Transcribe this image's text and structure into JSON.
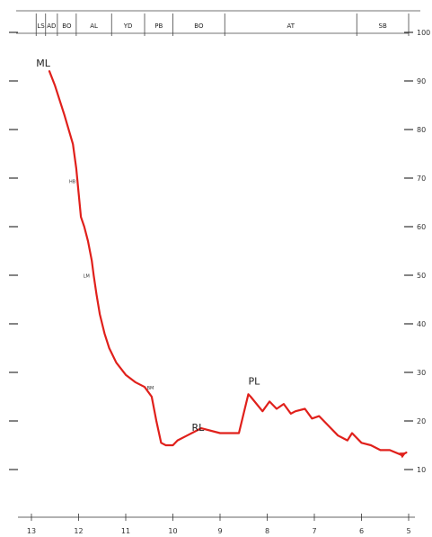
{
  "chart_data": {
    "type": "line",
    "title": "",
    "xlabel": "",
    "ylabel": "",
    "x_reversed": true,
    "xlim": [
      13,
      5
    ],
    "ylim": [
      10,
      100
    ],
    "x_ticks": [
      "13",
      "12",
      "11",
      "10",
      "9",
      "8",
      "7",
      "6",
      "5"
    ],
    "y_ticks": [
      "100",
      "90",
      "80",
      "70",
      "60",
      "50",
      "40",
      "30",
      "20",
      "10"
    ],
    "zones": [
      "LS",
      "AD",
      "BO",
      "AL",
      "YD",
      "PB",
      "BO",
      "AT",
      "SB"
    ],
    "zone_boundaries": [
      12.9,
      12.7,
      12.45,
      12.05,
      11.3,
      10.6,
      10.0,
      8.9,
      6.1,
      5.0
    ],
    "line_color": "#e0201b",
    "series": [
      {
        "x": [
          12.62,
          12.5,
          12.3,
          12.12,
          12.05,
          12.0,
          11.95,
          11.88,
          11.8,
          11.72,
          11.68,
          11.62,
          11.55,
          11.45,
          11.35,
          11.2,
          11.0,
          10.8,
          10.6,
          10.45,
          10.35,
          10.25,
          10.15,
          10.1,
          10.0,
          9.9,
          9.7,
          9.4,
          9.0,
          8.9,
          8.6,
          8.4,
          8.35,
          8.1,
          7.95,
          7.8,
          7.65,
          7.5,
          7.4,
          7.2,
          7.05,
          6.9,
          6.7,
          6.5,
          6.3,
          6.2,
          6.0,
          5.8,
          5.6,
          5.4,
          5.15,
          5.05
        ],
        "y": [
          92,
          89,
          83,
          77,
          72,
          67,
          62,
          60,
          57,
          53,
          50,
          46,
          42,
          38,
          35,
          32,
          29.5,
          28,
          27,
          25,
          20,
          15.5,
          15,
          15,
          15,
          16,
          17,
          18.5,
          17.5,
          17.5,
          17.5,
          25.5,
          25,
          22,
          24,
          22.5,
          23.5,
          21.5,
          22,
          22.5,
          20.5,
          21,
          19,
          17,
          16,
          17.5,
          15.5,
          15,
          14,
          14,
          13,
          13.5
        ]
      }
    ],
    "annotations": [
      {
        "text": "ML",
        "x": 12.9,
        "y": 93
      },
      {
        "text": "RL",
        "x": 9.6,
        "y": 18
      },
      {
        "text": "PL",
        "x": 8.4,
        "y": 27.5
      },
      {
        "text": "HB",
        "x": 12.2,
        "y": 69,
        "small": true
      },
      {
        "text": "LM",
        "x": 11.9,
        "y": 49.5,
        "small": true
      },
      {
        "text": "BM",
        "x": 10.55,
        "y": 26.5,
        "small": true
      }
    ]
  }
}
